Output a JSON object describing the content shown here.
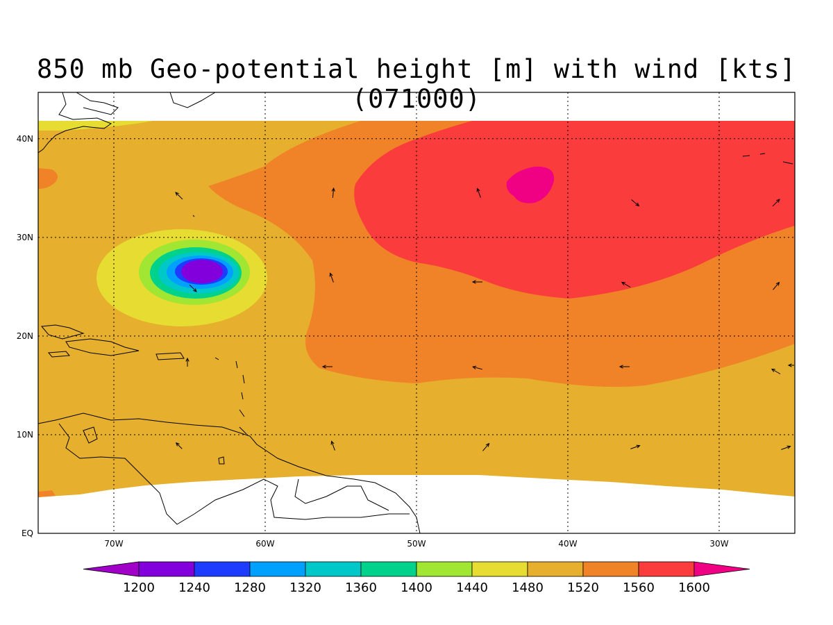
{
  "title": "850 mb Geo-potential height [m] with wind [kts] (071000)",
  "map": {
    "lon_ticks": [
      "70W",
      "60W",
      "50W",
      "40W",
      "30W"
    ],
    "lat_ticks": [
      "40N",
      "30N",
      "20N",
      "10N",
      "EQ"
    ],
    "lon_range": [
      "75W",
      "25W"
    ],
    "lat_range": [
      "EQ",
      "44N"
    ],
    "grid": "dotted",
    "field": "850 mb geopotential height",
    "vectors": "wind arrows"
  },
  "colorbar": {
    "labels": [
      "1200",
      "1240",
      "1280",
      "1320",
      "1360",
      "1400",
      "1440",
      "1480",
      "1520",
      "1560",
      "1600"
    ],
    "colors": [
      "#a000c8",
      "#8200dc",
      "#1e3cff",
      "#00a0ff",
      "#00c8c8",
      "#00d28c",
      "#a0e632",
      "#e6dc32",
      "#e6af2d",
      "#f08228",
      "#fa3c3c",
      "#f00082"
    ]
  }
}
